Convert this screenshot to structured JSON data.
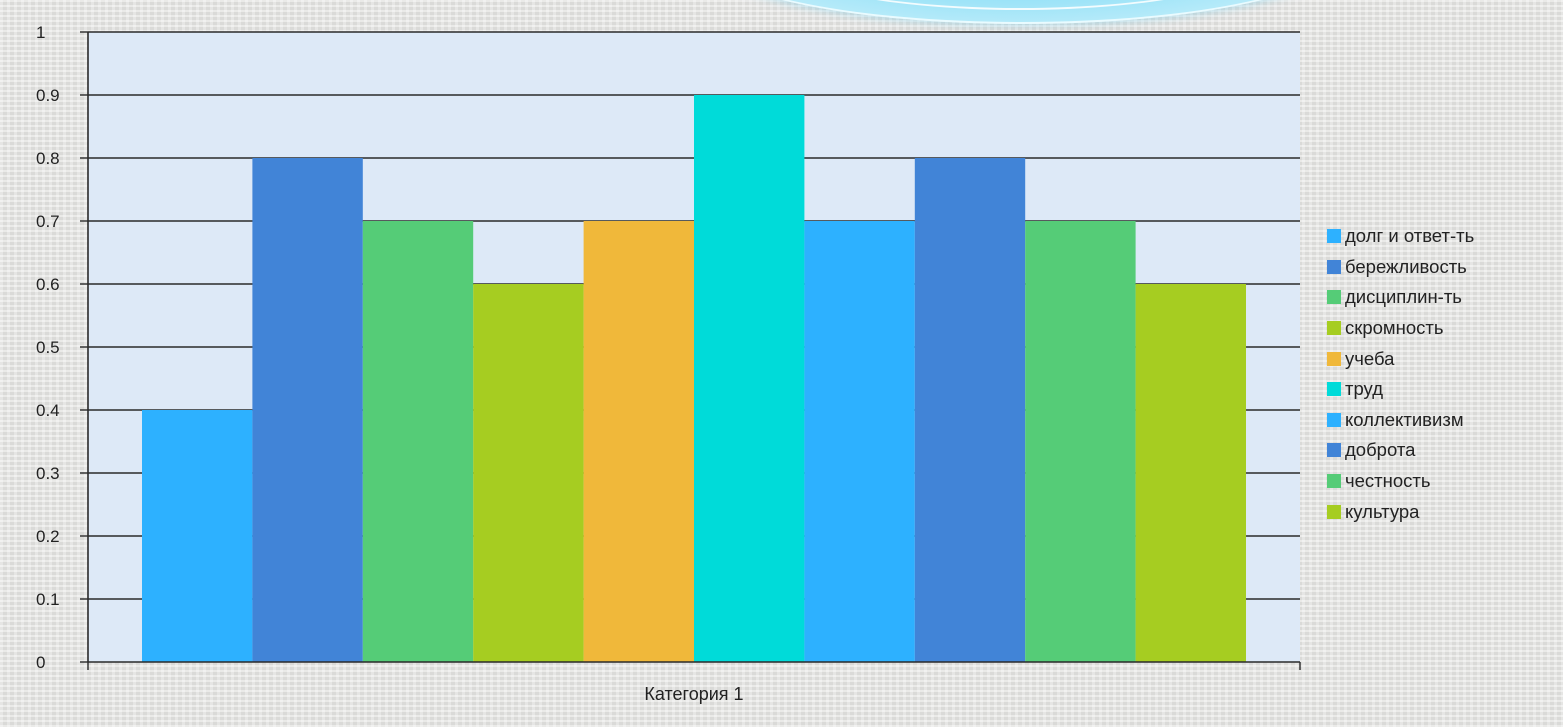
{
  "chart_data": {
    "type": "bar",
    "categories": [
      "Категория 1"
    ],
    "series": [
      {
        "name": "долг и ответ-ть",
        "values": [
          0.4
        ],
        "color": "#2db1ff"
      },
      {
        "name": "бережливость",
        "values": [
          0.8
        ],
        "color": "#4184d7"
      },
      {
        "name": "дисциплин-ть",
        "values": [
          0.7
        ],
        "color": "#55cc77"
      },
      {
        "name": "скромность",
        "values": [
          0.6
        ],
        "color": "#a6cd21"
      },
      {
        "name": "учеба",
        "values": [
          0.7
        ],
        "color": "#f0b83a"
      },
      {
        "name": "труд",
        "values": [
          0.9
        ],
        "color": "#00dbd9"
      },
      {
        "name": "коллективизм",
        "values": [
          0.7
        ],
        "color": "#2db1ff"
      },
      {
        "name": "доброта",
        "values": [
          0.8
        ],
        "color": "#4184d7"
      },
      {
        "name": "честность",
        "values": [
          0.7
        ],
        "color": "#55cc77"
      },
      {
        "name": "культура",
        "values": [
          0.6
        ],
        "color": "#a6cd21"
      }
    ],
    "ylim": [
      0,
      1
    ],
    "yticks": [
      "0",
      "0.1",
      "0.2",
      "0.3",
      "0.4",
      "0.5",
      "0.6",
      "0.7",
      "0.8",
      "0.9",
      "1"
    ],
    "grid": true,
    "legend_position": "right",
    "xlabel": "",
    "ylabel": "",
    "title": "",
    "plot_background": "#dde9f7"
  }
}
